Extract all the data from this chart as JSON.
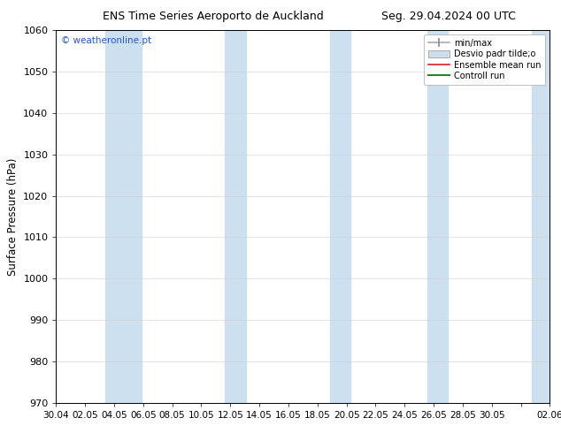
{
  "title_left": "ENS Time Series Aeroporto de Auckland",
  "title_right": "Seg. 29.04.2024 00 UTC",
  "ylabel": "Surface Pressure (hPa)",
  "ylim": [
    970,
    1060
  ],
  "yticks": [
    970,
    980,
    990,
    1000,
    1010,
    1020,
    1030,
    1040,
    1050,
    1060
  ],
  "xtick_labels": [
    "30.04",
    "02.05",
    "04.05",
    "06.05",
    "08.05",
    "10.05",
    "12.05",
    "14.05",
    "16.05",
    "18.05",
    "20.05",
    "22.05",
    "24.05",
    "26.05",
    "28.05",
    "30.05",
    "",
    "02.06"
  ],
  "watermark": "© weatheronline.pt",
  "legend_label_minmax": "min/max",
  "legend_label_desvio": "Desvio padr tilde;o",
  "legend_label_ensemble": "Ensemble mean run",
  "legend_label_control": "Controll run",
  "bg_color": "#ffffff",
  "band_color": "#cce0f0",
  "fig_width": 6.34,
  "fig_height": 4.9,
  "dpi": 100,
  "xlim": [
    0,
    33
  ],
  "band_centers": [
    4.5,
    12,
    19,
    25.5,
    32.5
  ],
  "band_half_widths": [
    1.2,
    0.7,
    0.7,
    0.7,
    0.7
  ]
}
